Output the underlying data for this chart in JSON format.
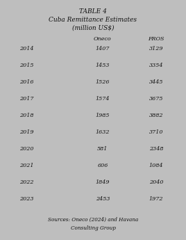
{
  "title_line1": "TABLE 4",
  "title_line2": "Cuba Remittance Estimates",
  "title_line3": "(million US$)",
  "col_headers": [
    "",
    "Oneco",
    "FROS"
  ],
  "rows": [
    [
      "2014",
      "1407",
      "3129"
    ],
    [
      "2015",
      "1453",
      "3354"
    ],
    [
      "2016",
      "1526",
      "3445"
    ],
    [
      "2017",
      "1574",
      "3675"
    ],
    [
      "2018",
      "1985",
      "3882"
    ],
    [
      "2019",
      "1632",
      "3710"
    ],
    [
      "2020",
      "581",
      "2348"
    ],
    [
      "2021",
      "606",
      "1084"
    ],
    [
      "2022",
      "1849",
      "2040"
    ],
    [
      "2023",
      "2453",
      "1972"
    ]
  ],
  "footnote_line1": "Sources: Oneco (2024) and Havana",
  "footnote_line2": "Consulting Group",
  "bg_color": "#bebebe",
  "text_color": "#111111",
  "title_fontsize": 6.5,
  "header_fontsize": 5.8,
  "row_fontsize": 5.8,
  "footnote_fontsize": 5.2
}
